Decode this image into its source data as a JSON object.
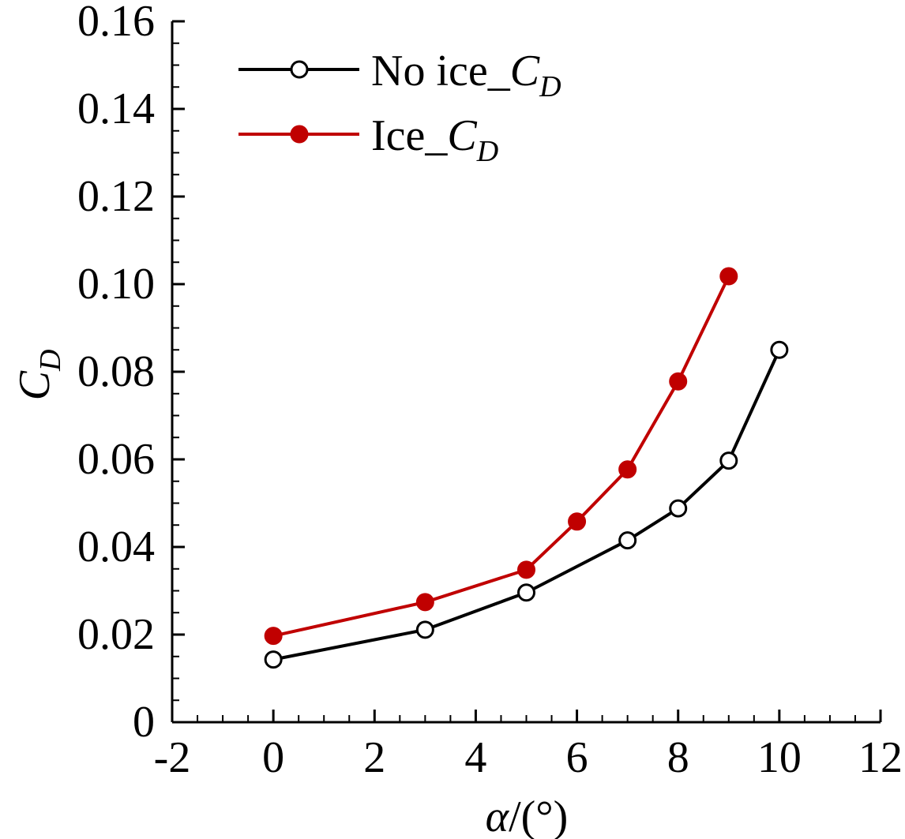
{
  "chart_data": {
    "type": "line",
    "xlabel": {
      "symbol": "α",
      "unit": "/(°)"
    },
    "ylabel": {
      "main": "C",
      "sub": "D"
    },
    "xlim": [
      -2,
      12
    ],
    "ylim": [
      0,
      0.16
    ],
    "xticks": [
      -2,
      0,
      2,
      4,
      6,
      8,
      10,
      12
    ],
    "xtick_labels": [
      "-2",
      "0",
      "2",
      "4",
      "6",
      "8",
      "10",
      "12"
    ],
    "yticks": [
      0,
      0.02,
      0.04,
      0.06,
      0.08,
      0.1,
      0.12,
      0.14,
      0.16
    ],
    "ytick_labels": [
      "0",
      "0.02",
      "0.04",
      "0.06",
      "0.08",
      "0.10",
      "0.12",
      "0.14",
      "0.16"
    ],
    "legend_position": "top-left",
    "series": [
      {
        "name": "No ice_C_D",
        "label_prefix": "No ice_",
        "label_main": "C",
        "label_sub": "D",
        "color": "#000000",
        "marker": "open-circle",
        "x": [
          0,
          3,
          5,
          7,
          8,
          9,
          10
        ],
        "y": [
          0.0143,
          0.0211,
          0.0296,
          0.0415,
          0.0488,
          0.0597,
          0.085
        ]
      },
      {
        "name": "Ice_C_D",
        "label_prefix": "Ice_",
        "label_main": "C",
        "label_sub": "D",
        "color": "#c00000",
        "marker": "filled-circle",
        "x": [
          0,
          3,
          5,
          6,
          7,
          8,
          9
        ],
        "y": [
          0.0197,
          0.0274,
          0.0348,
          0.0458,
          0.0577,
          0.0778,
          0.1018
        ]
      }
    ]
  }
}
